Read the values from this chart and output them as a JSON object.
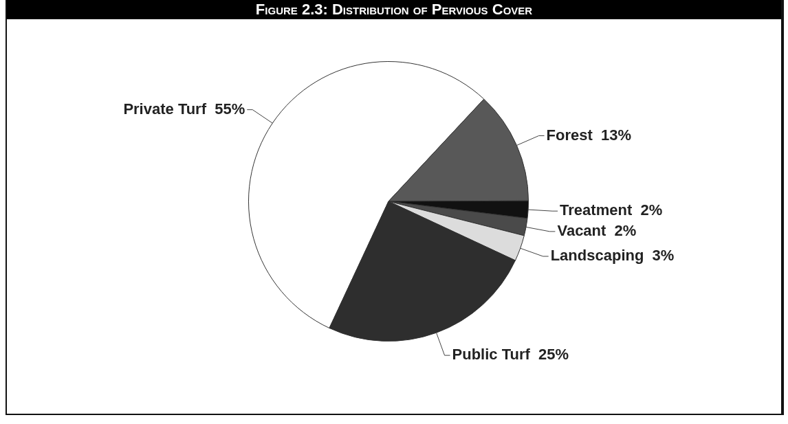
{
  "chart_data": {
    "type": "pie",
    "title": "Figure 2.3: Distribution of Pervious Cover",
    "categories": [
      "Private Turf",
      "Forest",
      "Treatment",
      "Vacant",
      "Landscaping",
      "Public Turf"
    ],
    "values": [
      55,
      13,
      2,
      2,
      3,
      25
    ],
    "value_labels": [
      "55%",
      "13%",
      "2%",
      "2%",
      "3%",
      "25%"
    ],
    "colors": [
      "#ffffff",
      "#585858",
      "#111111",
      "#4a4a4a",
      "#dcdcdc",
      "#2e2e2e"
    ],
    "legend": false
  }
}
